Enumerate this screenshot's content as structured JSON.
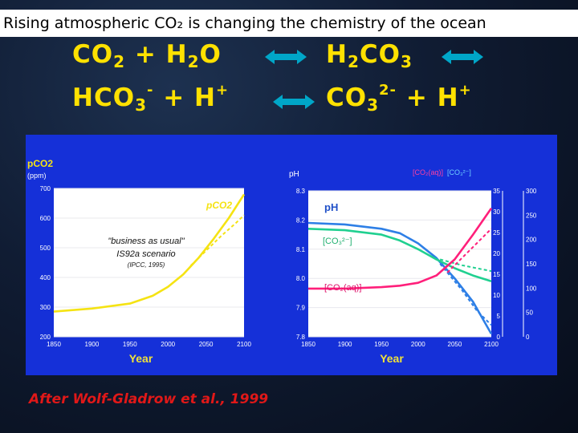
{
  "slide": {
    "title": "Rising atmospheric CO₂ is changing the chemistry of the ocean",
    "credit": "After Wolf-Gladrow et al., 1999",
    "colors": {
      "background": "#0c1528",
      "title_bar": "#ffffff",
      "equation": "#ffe100",
      "arrow": "#00a6c8",
      "panel": "#1530d8",
      "credit": "#e01818"
    }
  },
  "equations": {
    "line1": {
      "co2": "CO",
      "co2_sub": "2",
      "plus": "+",
      "h2o_h": "H",
      "h2o_sub": "2",
      "h2o_o": "O",
      "h2co3_h": "H",
      "h2co3_sub1": "2",
      "h2co3_co": "CO",
      "h2co3_sub2": "3"
    },
    "line2": {
      "hco3": "HCO",
      "hco3_sub": "3",
      "hco3_sup": "-",
      "plus": "+",
      "h": "H",
      "h_sup": "+",
      "co3": "CO",
      "co3_sub": "3",
      "co3_sup": "2-",
      "plus2": "+",
      "h2": "H",
      "h2_sup": "+"
    }
  },
  "chart_data": [
    {
      "type": "line",
      "title": "",
      "ylabel": "pCO2 (ppm)",
      "xlabel": "Year",
      "xlim": [
        1850,
        2100
      ],
      "ylim": [
        200,
        700
      ],
      "x_ticks": [
        "1850",
        "1900",
        "1950",
        "2000",
        "2050",
        "2100"
      ],
      "y_ticks": [
        "200",
        "300",
        "400",
        "500",
        "600",
        "700"
      ],
      "annotations": [
        "\"business as usual\"",
        "IS92a scenario",
        "(IPCC, 1995)"
      ],
      "series": [
        {
          "name": "pCO2",
          "style": "solid",
          "color": "#f5e313",
          "x": [
            1850,
            1900,
            1950,
            1980,
            2000,
            2020,
            2040,
            2060,
            2080,
            2100
          ],
          "y": [
            285,
            295,
            312,
            338,
            368,
            410,
            465,
            530,
            600,
            680
          ]
        },
        {
          "style": "dashed",
          "color": "#f5e313",
          "x": [
            2030,
            2050,
            2070,
            2090,
            2100
          ],
          "y": [
            440,
            490,
            540,
            585,
            610
          ]
        }
      ]
    },
    {
      "type": "line",
      "title": "",
      "ylabel": "pH",
      "xlabel": "Year",
      "xlim": [
        1850,
        2100
      ],
      "ylim": [
        7.8,
        8.3
      ],
      "x_ticks": [
        "1850",
        "1900",
        "1950",
        "2000",
        "2050",
        "2100"
      ],
      "y_ticks": [
        "7.8",
        "7.9",
        "8.0",
        "8.1",
        "8.2",
        "8.3"
      ],
      "right_axis_label": "[CO2(aq)] [CO32-]",
      "right_axis_1_ticks": [
        "0",
        "5",
        "10",
        "15",
        "20",
        "25",
        "30",
        "35"
      ],
      "right_axis_2_ticks": [
        "0",
        "50",
        "100",
        "150",
        "200",
        "250",
        "300"
      ],
      "series": [
        {
          "name": "pH",
          "style": "solid",
          "color": "#2e7fe6",
          "x": [
            1850,
            1900,
            1950,
            1975,
            2000,
            2025,
            2050,
            2075,
            2100
          ],
          "y": [
            8.19,
            8.185,
            8.17,
            8.155,
            8.12,
            8.07,
            8.0,
            7.92,
            7.81
          ]
        },
        {
          "style": "dashed",
          "color": "#2e7fe6",
          "x": [
            2030,
            2060,
            2080,
            2100
          ],
          "y": [
            8.05,
            7.96,
            7.89,
            7.84
          ]
        },
        {
          "name": "[CO3 2-]",
          "style": "solid",
          "color": "#20d090",
          "x": [
            1850,
            1900,
            1950,
            1975,
            2000,
            2025,
            2050,
            2075,
            2100
          ],
          "y": [
            8.17,
            8.165,
            8.15,
            8.13,
            8.1,
            8.065,
            8.035,
            8.01,
            7.99
          ]
        },
        {
          "style": "dashed",
          "color": "#20d090",
          "x": [
            2030,
            2060,
            2080,
            2100
          ],
          "y": [
            8.065,
            8.045,
            8.035,
            8.025
          ]
        },
        {
          "name": "[CO2(aq)]",
          "style": "solid",
          "color": "#ff1f7a",
          "x": [
            1850,
            1900,
            1950,
            1975,
            2000,
            2025,
            2050,
            2075,
            2100
          ],
          "y": [
            7.965,
            7.965,
            7.97,
            7.975,
            7.985,
            8.01,
            8.065,
            8.15,
            8.24
          ]
        },
        {
          "style": "dashed",
          "color": "#ff1f7a",
          "x": [
            2040,
            2060,
            2080,
            2100
          ],
          "y": [
            8.02,
            8.07,
            8.12,
            8.17
          ]
        }
      ]
    }
  ]
}
